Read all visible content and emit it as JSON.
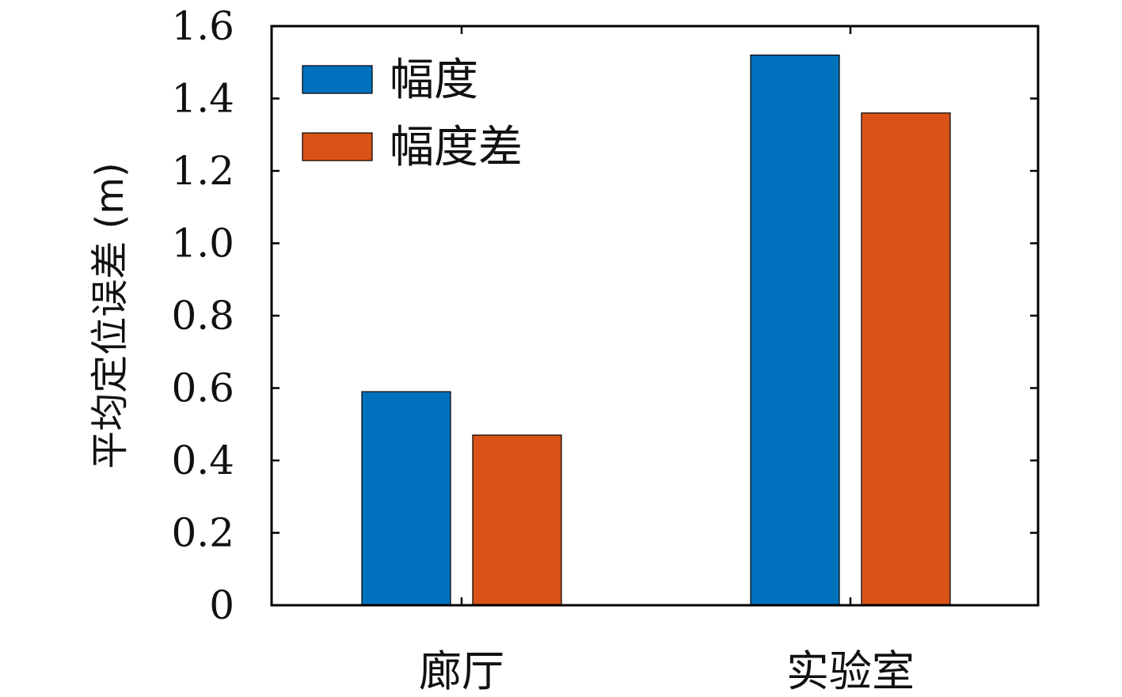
{
  "chart_data": {
    "type": "bar",
    "categories": [
      "廊厅",
      "实验室"
    ],
    "series": [
      {
        "name": "幅度",
        "values": [
          0.59,
          1.52
        ],
        "color": "#0072BD"
      },
      {
        "name": "幅度差",
        "values": [
          0.47,
          1.36
        ],
        "color": "#D95319"
      }
    ],
    "ylabel": "平均定位误差 (m)",
    "xlabel": "",
    "ylim": [
      0,
      1.6
    ],
    "yticks": [
      "0",
      "0.2",
      "0.4",
      "0.6",
      "0.8",
      "1.0",
      "1.2",
      "1.4",
      "1.6"
    ],
    "grid": false,
    "legend_position": "top-left"
  }
}
